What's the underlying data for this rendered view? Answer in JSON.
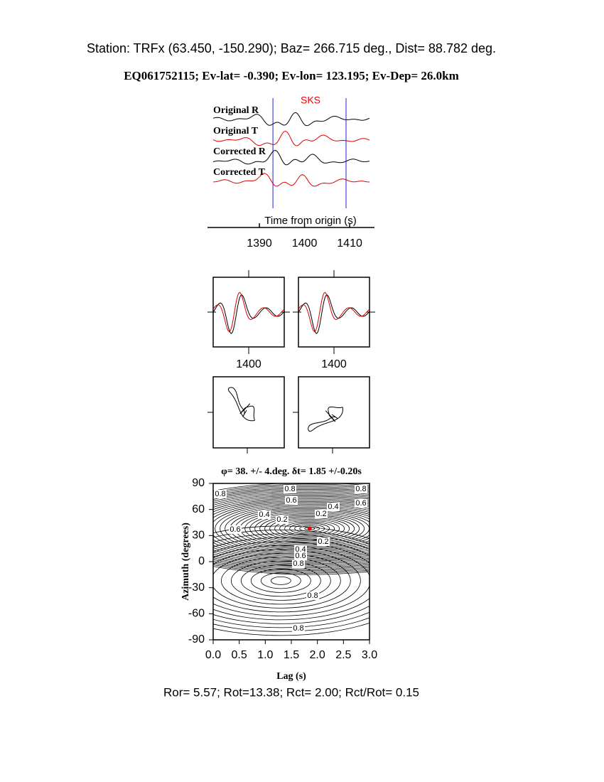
{
  "header": {
    "station_line": "Station: TRFx (63.450, -150.290); Baz=  266.715 deg., Dist=   88.782 deg.",
    "event_line": "EQ061752115; Ev-lat=  -0.390; Ev-lon= 123.195; Ev-Dep= 26.0km"
  },
  "traces": {
    "labels": [
      "Original R",
      "Original T",
      "Corrected R",
      "Corrected T"
    ],
    "phase": "SKS",
    "xlabel": "Time from origin (s)",
    "xlim": [
      1378.5,
      1415.5
    ],
    "xticks": [
      1390,
      1400,
      1410
    ],
    "window": [
      1393,
      1409.2
    ]
  },
  "waveform_panels": {
    "xlim": [
      1392,
      1408
    ],
    "xticks": [
      1400
    ]
  },
  "grid_search": {
    "title": "φ= 38. +/- 4.deg. δt= 1.85 +/-0.20s",
    "xlabel": "Lag (s)",
    "ylabel": "Azimuth (degrees)",
    "xlim": [
      0,
      3
    ],
    "ylim": [
      -90,
      90
    ],
    "xticks": [
      {
        "value": 0,
        "label": "0.0"
      },
      0.5,
      {
        "value": 1,
        "label": "1.0"
      },
      1.5,
      {
        "value": 2,
        "label": "2.0"
      },
      2.5,
      {
        "value": 3,
        "label": "3.0"
      }
    ],
    "yticks": [
      90,
      60,
      30,
      0,
      -30,
      -60,
      -90
    ],
    "contour_labels": [
      0.8,
      0.8,
      0.6,
      0.4,
      0.2,
      0.2,
      0.4,
      0.8,
      0.6,
      0.6,
      0.2,
      0.4,
      0.6,
      0.8,
      0.8,
      0.8
    ],
    "best": {
      "lag": 1.85,
      "azimuth": 38
    }
  },
  "footer": "Ror= 5.57; Rot=13.38; Rct= 2.00; Rct/Rot= 0.15"
}
